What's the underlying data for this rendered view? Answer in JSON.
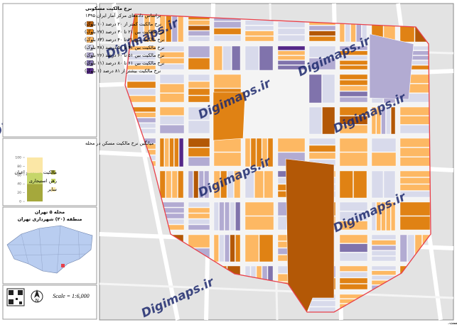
{
  "title": "نرخ مالکیت مسکونی",
  "subtitle": "براساس داده‌های مرکز آمار ایران ۱۳۹۵",
  "legend": {
    "items": [
      {
        "label": "نرخ مالکیت کمتر از ۲۰ درصد (۱۰ بلوک)",
        "color": "#b35806"
      },
      {
        "label": "نرخ مالکیت بین ۲۱ تا ۳۰ درصد (۲۷ بلوک)",
        "color": "#e08214"
      },
      {
        "label": "نرخ مالکیت بین ۳۱ تا ۴۰ درصد (۶۳ بلوک)",
        "color": "#fdb863"
      },
      {
        "label": "نرخ مالکیت بین ۴۱ تا ۵۰ درصد (۴۸ بلوک)",
        "color": "#d8daeb"
      },
      {
        "label": "نرخ مالکیت بین ۵۱ تا ۶۰ درصد (۲۶ بلوک)",
        "color": "#b2abd2"
      },
      {
        "label": "نرخ مالکیت بین ۶۱ تا ۸۰ درصد (۱۱ بلوک)",
        "color": "#8073ac"
      },
      {
        "label": "نرخ مالکیت بیشتر از ۸۱ درصد (۱ بلوک)",
        "color": "#542788"
      }
    ]
  },
  "chart": {
    "type": "stacked-bar",
    "title": "میانگین نرخ مالکیت مسکن در محله",
    "ylim": [
      0,
      100
    ],
    "yticks": [
      0,
      20,
      40,
      60,
      80,
      100
    ],
    "series": [
      {
        "name": "مالکیت عرصه و اعیان",
        "color": "#a5a83c",
        "value": 40
      },
      {
        "name": "رهن استیجاری",
        "color": "#c6d66a",
        "value": 25
      },
      {
        "name": "سایر",
        "color": "#fbe7a6",
        "value": 35
      }
    ]
  },
  "locator": {
    "title": "محله ۵ تهران",
    "subtitle": "منطقه (۲۰) شهرداری تهران"
  },
  "scale": "Scale = 1:6,000",
  "watermark": "Digimaps.ir",
  "footer": "حقوق مالکیت معنوی این محصول متعلق به سایت www.digimaps.ir بوده و تمامی حقوق آن محفوظ است."
}
